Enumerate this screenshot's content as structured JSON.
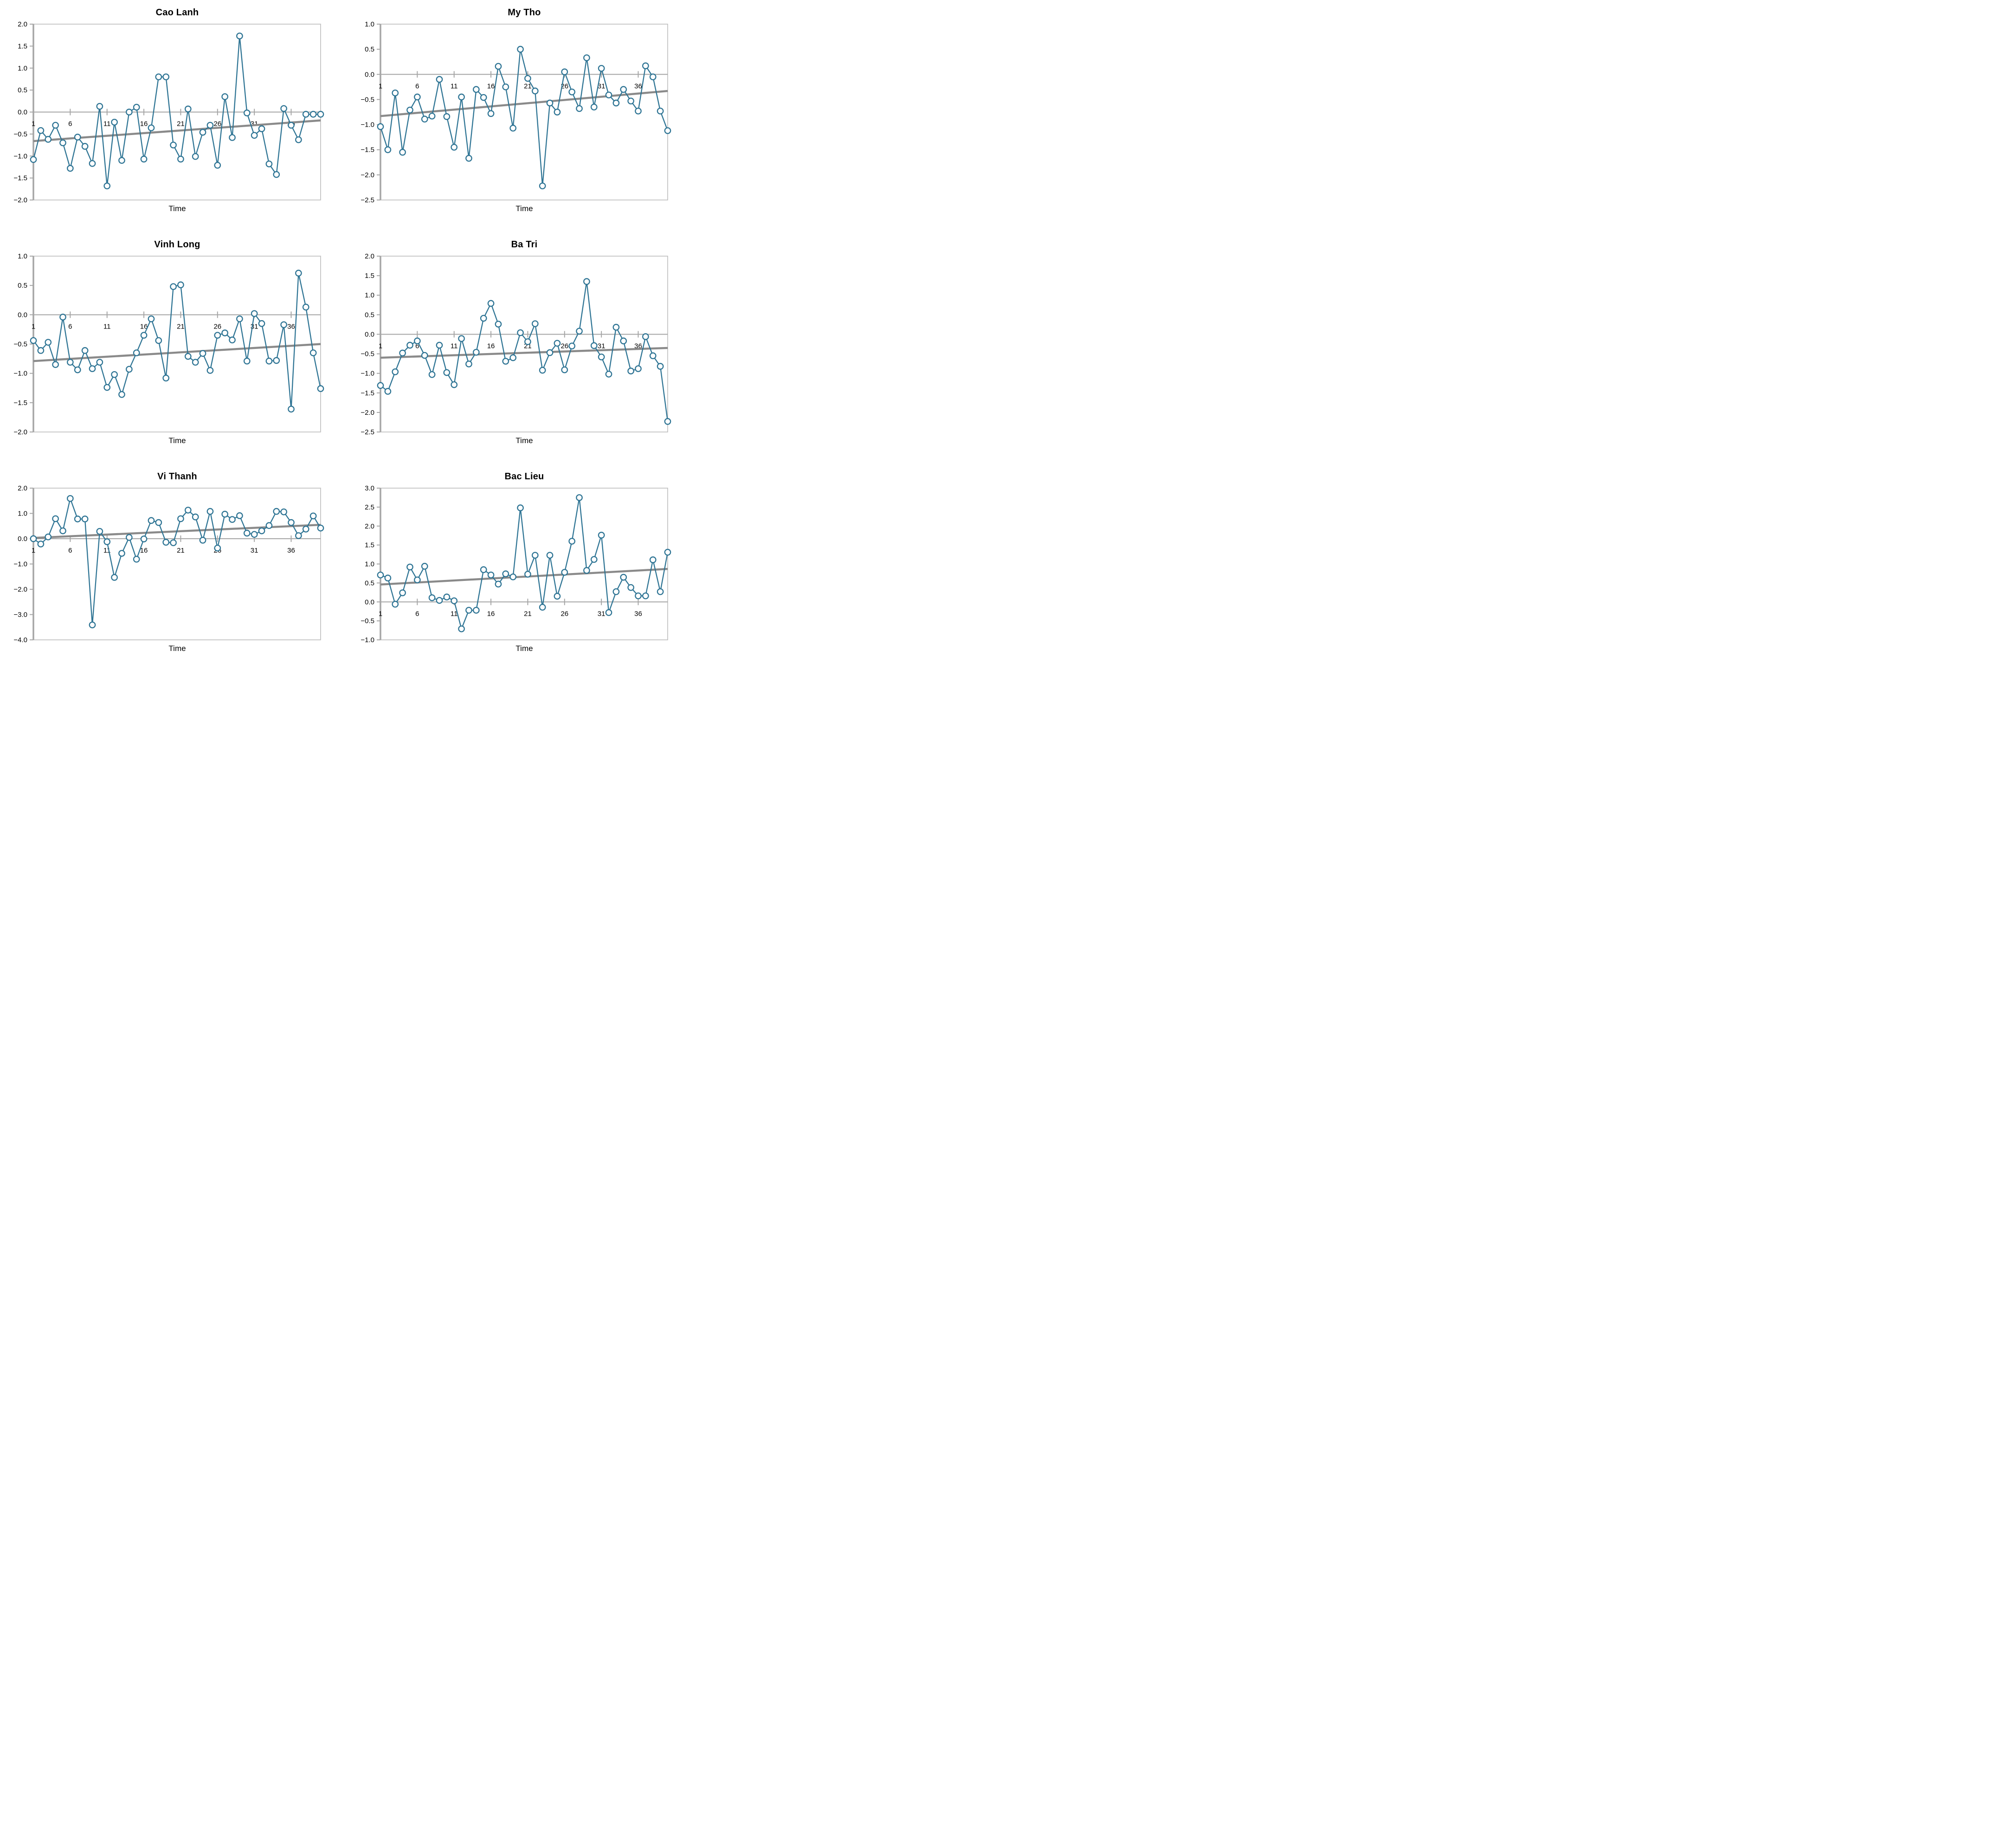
{
  "figure_background": "#ffffff",
  "style": {
    "series_color": "#2e7494",
    "marker_fill": "#ffffff",
    "trend_color": "#8a8a8a",
    "axis_color": "#a6a6a6",
    "border_color": "#c0c0c0",
    "text_color": "#000000"
  },
  "chart_data": [
    {
      "type": "line",
      "title": "Cao Lanh",
      "xlabel": "Time",
      "x_ticks": [
        1,
        6,
        11,
        16,
        21,
        26,
        31,
        36
      ],
      "ylim": [
        -2.0,
        2.0
      ],
      "ytick_step": 0.5,
      "x": "1..40",
      "values": [
        -1.08,
        -0.42,
        -0.62,
        -0.3,
        -0.7,
        -1.28,
        -0.57,
        -0.78,
        -1.17,
        0.13,
        -1.68,
        -0.23,
        -1.1,
        0.0,
        0.11,
        -1.07,
        -0.36,
        0.8,
        0.8,
        -0.75,
        -1.07,
        0.07,
        -1.01,
        -0.46,
        -0.3,
        -1.21,
        0.35,
        -0.58,
        1.73,
        -0.02,
        -0.53,
        -0.38,
        -1.18,
        -1.42,
        0.08,
        -0.3,
        -0.63,
        -0.05,
        -0.05,
        -0.05
      ],
      "trend": [
        -0.66,
        -0.19
      ],
      "legend": null,
      "grid": "zero-line-only"
    },
    {
      "type": "line",
      "title": "My Tho",
      "xlabel": "Time",
      "x_ticks": [
        1,
        6,
        11,
        16,
        21,
        26,
        31,
        36
      ],
      "ylim": [
        -2.5,
        1.0
      ],
      "ytick_step": 0.5,
      "x": "1..40",
      "values": [
        -1.04,
        -1.5,
        -0.37,
        -1.55,
        -0.71,
        -0.45,
        -0.89,
        -0.83,
        -0.1,
        -0.84,
        -1.45,
        -0.45,
        -1.67,
        -0.3,
        -0.46,
        -0.78,
        0.16,
        -0.25,
        -1.07,
        0.5,
        -0.08,
        -0.33,
        -2.22,
        -0.57,
        -0.75,
        0.05,
        -0.35,
        -0.68,
        0.33,
        -0.65,
        0.12,
        -0.41,
        -0.57,
        -0.3,
        -0.53,
        -0.73,
        0.17,
        -0.05,
        -0.73,
        -1.12
      ],
      "trend": [
        -0.83,
        -0.33
      ],
      "legend": null,
      "grid": "zero-line-only"
    },
    {
      "type": "line",
      "title": "Vinh Long",
      "xlabel": "Time",
      "x_ticks": [
        1,
        6,
        11,
        16,
        21,
        26,
        31,
        36
      ],
      "ylim": [
        -2.0,
        1.0
      ],
      "ytick_step": 0.5,
      "x": "1..40",
      "values": [
        -0.44,
        -0.61,
        -0.47,
        -0.85,
        -0.04,
        -0.81,
        -0.94,
        -0.61,
        -0.92,
        -0.81,
        -1.24,
        -1.02,
        -1.36,
        -0.93,
        -0.65,
        -0.35,
        -0.07,
        -0.44,
        -1.08,
        0.48,
        0.51,
        -0.71,
        -0.81,
        -0.66,
        -0.95,
        -0.35,
        -0.31,
        -0.43,
        -0.07,
        -0.79,
        0.02,
        -0.15,
        -0.79,
        -0.78,
        -0.17,
        -1.61,
        0.71,
        0.13,
        -0.65,
        -1.26
      ],
      "trend": [
        -0.79,
        -0.5
      ],
      "legend": null,
      "grid": "zero-line-only"
    },
    {
      "type": "line",
      "title": "Ba Tri",
      "xlabel": "Time",
      "x_ticks": [
        1,
        6,
        11,
        16,
        21,
        26,
        31,
        36
      ],
      "ylim": [
        -2.5,
        2.0
      ],
      "ytick_step": 0.5,
      "x": "1..40",
      "values": [
        -1.31,
        -1.46,
        -0.96,
        -0.48,
        -0.28,
        -0.17,
        -0.54,
        -1.03,
        -0.28,
        -0.98,
        -1.29,
        -0.11,
        -0.76,
        -0.46,
        0.41,
        0.79,
        0.26,
        -0.69,
        -0.6,
        0.04,
        -0.19,
        0.27,
        -0.92,
        -0.47,
        -0.23,
        -0.91,
        -0.3,
        0.08,
        1.35,
        -0.29,
        -0.58,
        -1.02,
        0.18,
        -0.17,
        -0.94,
        -0.88,
        -0.06,
        -0.55,
        -0.82,
        -2.23
      ],
      "trend": [
        -0.6,
        -0.35
      ],
      "legend": null,
      "grid": "zero-line-only"
    },
    {
      "type": "line",
      "title": "Vi Thanh",
      "xlabel": "Time",
      "x_ticks": [
        1,
        6,
        11,
        16,
        21,
        26,
        31,
        36
      ],
      "ylim": [
        -4.0,
        2.0
      ],
      "ytick_step": 1.0,
      "x": "1..40",
      "values": [
        0.0,
        -0.21,
        0.07,
        0.79,
        0.31,
        1.59,
        0.78,
        0.78,
        -3.41,
        0.29,
        -0.12,
        -1.53,
        -0.58,
        0.05,
        -0.81,
        -0.01,
        0.72,
        0.64,
        -0.14,
        -0.16,
        0.79,
        1.13,
        0.86,
        -0.06,
        1.08,
        -0.37,
        0.97,
        0.76,
        0.91,
        0.22,
        0.17,
        0.31,
        0.52,
        1.08,
        1.06,
        0.64,
        0.12,
        0.38,
        0.9,
        0.42
      ],
      "trend": [
        0.03,
        0.55
      ],
      "legend": null,
      "grid": "zero-line-only"
    },
    {
      "type": "line",
      "title": "Bac Lieu",
      "xlabel": "Time",
      "x_ticks": [
        1,
        6,
        11,
        16,
        21,
        26,
        31,
        36
      ],
      "ylim": [
        -1.0,
        3.0
      ],
      "ytick_step": 0.5,
      "x": "1..40",
      "values": [
        0.71,
        0.63,
        -0.06,
        0.24,
        0.92,
        0.58,
        0.94,
        0.11,
        0.04,
        0.13,
        0.03,
        -0.71,
        -0.22,
        -0.22,
        0.85,
        0.71,
        0.47,
        0.74,
        0.66,
        2.48,
        0.73,
        1.23,
        -0.14,
        1.23,
        0.15,
        0.78,
        1.6,
        2.75,
        0.83,
        1.12,
        1.76,
        -0.28,
        0.27,
        0.65,
        0.38,
        0.16,
        0.16,
        1.11,
        0.27,
        1.31
      ],
      "trend": [
        0.46,
        0.87
      ],
      "legend": null,
      "grid": "zero-line-only"
    }
  ]
}
